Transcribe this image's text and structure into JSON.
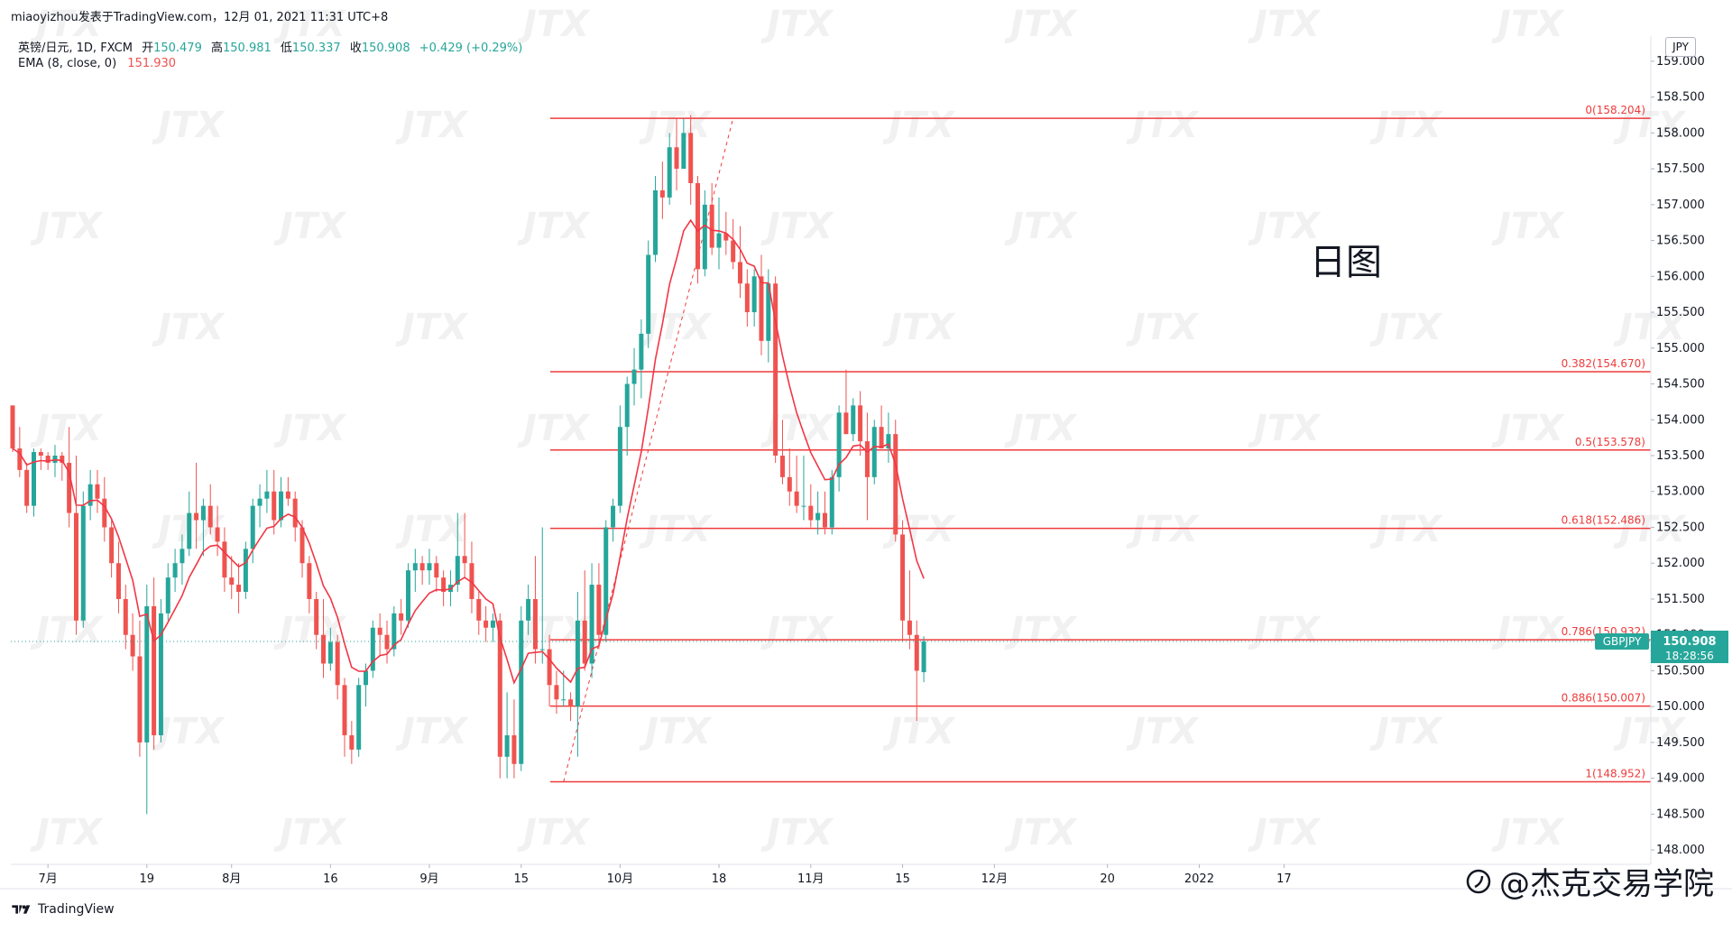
{
  "header": {
    "attribution": "miaoyizhou发表于TradingView.com，12月 01, 2021 11:31 UTC+8"
  },
  "legend": {
    "symbol": "英镑/日元, 1D, FXCM",
    "open_label": "开",
    "open": "150.479",
    "high_label": "高",
    "high": "150.981",
    "low_label": "低",
    "low": "150.337",
    "close_label": "收",
    "close": "150.908",
    "change": "+0.429 (+0.29%)",
    "ema_label": "EMA (8, close, 0)",
    "ema_value": "151.930"
  },
  "annotation": "日图",
  "price_scale": {
    "currency": "JPY",
    "symbol_tag": "GBPJPY",
    "last_price": "150.908",
    "countdown": "18:28:56"
  },
  "footer": {
    "tradingview": "TradingView",
    "brand": "@杰克交易学院"
  },
  "watermark_text": "JTX",
  "colors": {
    "up": "#26a69a",
    "down": "#ef5350",
    "ema": "#f23645",
    "fib": "#ef3b3b",
    "price_line": "#26a69a"
  },
  "chart_data": {
    "type": "candlestick",
    "symbol": "GBPJPY",
    "timeframe": "1D",
    "ylim": [
      147.8,
      159.2
    ],
    "y_ticks": [
      "159.000",
      "158.500",
      "158.000",
      "157.500",
      "157.000",
      "156.500",
      "156.000",
      "155.500",
      "155.000",
      "154.500",
      "154.000",
      "153.500",
      "153.000",
      "152.500",
      "152.000",
      "151.500",
      "151.000",
      "150.500",
      "150.000",
      "149.500",
      "149.000",
      "148.500",
      "148.000"
    ],
    "x_ticks": [
      {
        "label": "7月",
        "i": 5
      },
      {
        "label": "19",
        "i": 19
      },
      {
        "label": "8月",
        "i": 31
      },
      {
        "label": "16",
        "i": 45
      },
      {
        "label": "9月",
        "i": 59
      },
      {
        "label": "15",
        "i": 72
      },
      {
        "label": "10月",
        "i": 86
      },
      {
        "label": "18",
        "i": 100
      },
      {
        "label": "11月",
        "i": 113
      },
      {
        "label": "15",
        "i": 126
      },
      {
        "label": "12月",
        "i": 139
      },
      {
        "label": "20",
        "i": 155
      },
      {
        "label": "2022",
        "i": 168
      },
      {
        "label": "17",
        "i": 180
      }
    ],
    "fib_levels": [
      {
        "label": "0(158.204)",
        "price": 158.204
      },
      {
        "label": "0.382(154.670)",
        "price": 154.67
      },
      {
        "label": "0.5(153.578)",
        "price": 153.578
      },
      {
        "label": "0.618(152.486)",
        "price": 152.486
      },
      {
        "label": "0.786(150.932)",
        "price": 150.932
      },
      {
        "label": "0.886(150.007)",
        "price": 150.007
      },
      {
        "label": "1(148.952)",
        "price": 148.952
      }
    ],
    "candles": [
      [
        154.2,
        154.2,
        153.55,
        153.6
      ],
      [
        153.6,
        153.9,
        153.2,
        153.3
      ],
      [
        153.3,
        153.4,
        152.7,
        152.8
      ],
      [
        152.8,
        153.6,
        152.65,
        153.55
      ],
      [
        153.55,
        153.6,
        153.3,
        153.5
      ],
      [
        153.5,
        153.55,
        153.3,
        153.4
      ],
      [
        153.4,
        153.65,
        153.2,
        153.5
      ],
      [
        153.5,
        153.55,
        153.15,
        153.4
      ],
      [
        153.4,
        153.9,
        152.5,
        152.7
      ],
      [
        152.7,
        153.5,
        151.0,
        151.2
      ],
      [
        151.2,
        153.0,
        151.1,
        152.8
      ],
      [
        152.8,
        153.3,
        152.6,
        153.1
      ],
      [
        153.1,
        153.3,
        152.7,
        152.9
      ],
      [
        152.9,
        153.2,
        152.3,
        152.5
      ],
      [
        152.5,
        152.6,
        151.8,
        152.0
      ],
      [
        152.0,
        152.3,
        151.3,
        151.5
      ],
      [
        151.5,
        151.7,
        150.8,
        151.0
      ],
      [
        151.0,
        151.3,
        150.5,
        150.7
      ],
      [
        150.7,
        151.2,
        149.3,
        149.5
      ],
      [
        149.5,
        151.7,
        148.5,
        151.4
      ],
      [
        151.4,
        151.8,
        149.4,
        149.6
      ],
      [
        149.6,
        151.5,
        149.5,
        151.3
      ],
      [
        151.3,
        152.0,
        151.2,
        151.8
      ],
      [
        151.8,
        152.2,
        151.6,
        152.0
      ],
      [
        152.0,
        152.4,
        151.7,
        152.2
      ],
      [
        152.2,
        153.0,
        152.1,
        152.7
      ],
      [
        152.7,
        153.4,
        152.2,
        152.6
      ],
      [
        152.6,
        152.9,
        152.1,
        152.8
      ],
      [
        152.8,
        153.1,
        152.4,
        152.5
      ],
      [
        152.5,
        152.8,
        152.1,
        152.3
      ],
      [
        152.3,
        152.5,
        151.6,
        151.8
      ],
      [
        151.8,
        152.1,
        151.5,
        151.7
      ],
      [
        151.7,
        152.0,
        151.3,
        151.6
      ],
      [
        151.6,
        152.3,
        151.5,
        152.2
      ],
      [
        152.2,
        152.9,
        152.0,
        152.8
      ],
      [
        152.8,
        153.1,
        152.5,
        152.9
      ],
      [
        152.9,
        153.3,
        152.7,
        153.0
      ],
      [
        153.0,
        153.3,
        152.4,
        152.6
      ],
      [
        152.6,
        153.2,
        152.5,
        153.0
      ],
      [
        153.0,
        153.2,
        152.8,
        152.9
      ],
      [
        152.9,
        153.0,
        152.3,
        152.5
      ],
      [
        152.5,
        152.6,
        151.8,
        152.0
      ],
      [
        152.0,
        152.1,
        151.3,
        151.5
      ],
      [
        151.5,
        151.6,
        150.8,
        151.0
      ],
      [
        151.0,
        151.5,
        150.4,
        150.6
      ],
      [
        150.6,
        151.1,
        150.5,
        150.9
      ],
      [
        150.9,
        151.0,
        150.1,
        150.3
      ],
      [
        150.3,
        150.4,
        149.3,
        149.6
      ],
      [
        149.6,
        149.8,
        149.2,
        149.4
      ],
      [
        149.4,
        150.4,
        149.3,
        150.3
      ],
      [
        150.3,
        150.6,
        150.0,
        150.5
      ],
      [
        150.5,
        151.2,
        150.4,
        151.1
      ],
      [
        151.1,
        151.3,
        150.7,
        151.0
      ],
      [
        151.0,
        151.2,
        150.6,
        150.8
      ],
      [
        150.8,
        151.4,
        150.7,
        151.3
      ],
      [
        151.3,
        151.5,
        151.0,
        151.2
      ],
      [
        151.2,
        152.0,
        151.1,
        151.9
      ],
      [
        151.9,
        152.2,
        151.6,
        152.0
      ],
      [
        152.0,
        152.1,
        151.7,
        151.9
      ],
      [
        151.9,
        152.2,
        151.7,
        152.0
      ],
      [
        152.0,
        152.1,
        151.6,
        151.8
      ],
      [
        151.8,
        151.9,
        151.4,
        151.6
      ],
      [
        151.6,
        151.9,
        151.4,
        151.7
      ],
      [
        151.7,
        152.7,
        151.6,
        152.1
      ],
      [
        152.1,
        152.7,
        151.8,
        152.0
      ],
      [
        152.0,
        152.3,
        151.3,
        151.5
      ],
      [
        151.5,
        151.6,
        151.0,
        151.2
      ],
      [
        151.2,
        151.4,
        150.9,
        151.1
      ],
      [
        151.1,
        151.3,
        150.9,
        151.2
      ],
      [
        151.2,
        151.3,
        149.0,
        149.3
      ],
      [
        149.3,
        150.2,
        149.0,
        149.6
      ],
      [
        149.6,
        150.1,
        149.0,
        149.2
      ],
      [
        149.2,
        151.4,
        149.1,
        151.2
      ],
      [
        151.2,
        151.7,
        151.0,
        151.5
      ],
      [
        151.5,
        152.1,
        150.6,
        150.8
      ],
      [
        150.8,
        152.5,
        150.6,
        150.8
      ],
      [
        150.8,
        151.0,
        150.0,
        150.3
      ],
      [
        150.3,
        150.5,
        149.9,
        150.1
      ],
      [
        150.1,
        150.5,
        150.0,
        150.1
      ],
      [
        150.1,
        150.2,
        149.8,
        150.0
      ],
      [
        150.0,
        151.6,
        149.3,
        151.2
      ],
      [
        151.2,
        151.9,
        150.5,
        150.6
      ],
      [
        150.6,
        152.0,
        150.4,
        151.7
      ],
      [
        151.7,
        152.0,
        150.8,
        151.0
      ],
      [
        151.0,
        152.6,
        150.9,
        152.5
      ],
      [
        152.5,
        152.9,
        152.3,
        152.8
      ],
      [
        152.8,
        154.2,
        152.7,
        153.9
      ],
      [
        153.9,
        154.6,
        153.5,
        154.5
      ],
      [
        154.5,
        155.0,
        154.2,
        154.7
      ],
      [
        154.7,
        155.4,
        154.3,
        155.2
      ],
      [
        155.2,
        156.5,
        155.0,
        156.3
      ],
      [
        156.3,
        157.4,
        156.2,
        157.2
      ],
      [
        157.2,
        157.6,
        156.8,
        157.1
      ],
      [
        157.1,
        158.0,
        157.0,
        157.8
      ],
      [
        157.8,
        158.2,
        157.2,
        157.5
      ],
      [
        157.5,
        158.2,
        157.6,
        158.0
      ],
      [
        158.0,
        158.25,
        157.0,
        157.3
      ],
      [
        157.3,
        157.4,
        155.9,
        156.1
      ],
      [
        156.1,
        157.2,
        156.0,
        157.0
      ],
      [
        157.0,
        157.3,
        156.3,
        156.4
      ],
      [
        156.4,
        157.1,
        156.1,
        156.6
      ],
      [
        156.6,
        156.9,
        156.3,
        156.5
      ],
      [
        156.5,
        156.8,
        156.1,
        156.2
      ],
      [
        156.2,
        156.7,
        155.7,
        155.9
      ],
      [
        155.9,
        156.1,
        155.3,
        155.5
      ],
      [
        155.5,
        156.1,
        155.3,
        156.0
      ],
      [
        156.0,
        156.3,
        154.9,
        155.1
      ],
      [
        155.1,
        156.1,
        154.8,
        155.9
      ],
      [
        155.9,
        156.0,
        153.4,
        153.5
      ],
      [
        153.5,
        154.0,
        153.1,
        153.2
      ],
      [
        153.2,
        153.6,
        152.8,
        153.0
      ],
      [
        153.0,
        153.5,
        152.7,
        152.8
      ],
      [
        152.8,
        153.5,
        152.6,
        152.8
      ],
      [
        152.8,
        153.1,
        152.5,
        152.6
      ],
      [
        152.6,
        153.0,
        152.4,
        152.7
      ],
      [
        152.7,
        153.0,
        152.4,
        152.5
      ],
      [
        152.5,
        153.3,
        152.4,
        153.2
      ],
      [
        153.2,
        154.2,
        153.0,
        154.1
      ],
      [
        154.1,
        154.7,
        153.8,
        153.8
      ],
      [
        153.8,
        154.3,
        153.7,
        154.2
      ],
      [
        154.2,
        154.4,
        153.5,
        153.7
      ],
      [
        153.7,
        154.1,
        152.6,
        153.2
      ],
      [
        153.2,
        154.0,
        153.1,
        153.9
      ],
      [
        153.9,
        154.2,
        153.6,
        153.6
      ],
      [
        153.6,
        154.1,
        153.4,
        153.8
      ],
      [
        153.8,
        154.0,
        152.3,
        152.4
      ],
      [
        152.4,
        152.6,
        150.9,
        151.2
      ],
      [
        151.2,
        151.9,
        150.8,
        151.0
      ],
      [
        151.0,
        151.2,
        149.8,
        150.5
      ],
      [
        150.48,
        150.98,
        150.34,
        150.91
      ]
    ],
    "ema": {
      "name": "EMA (8, close, 0)",
      "period": 8,
      "last": 151.93
    }
  }
}
